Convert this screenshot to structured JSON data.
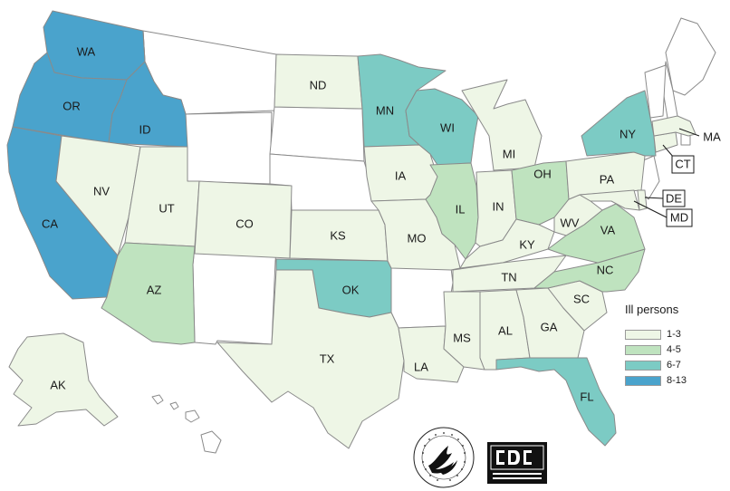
{
  "legend": {
    "title": "Ill persons",
    "bins": [
      {
        "label": "1-3",
        "color": "#eef6e6"
      },
      {
        "label": "4-5",
        "color": "#bfe3bf"
      },
      {
        "label": "6-7",
        "color": "#7ccbc4"
      },
      {
        "label": "8-13",
        "color": "#4aa3cc"
      }
    ]
  },
  "states": [
    {
      "abbr": "WA",
      "bin": 3
    },
    {
      "abbr": "OR",
      "bin": 3
    },
    {
      "abbr": "ID",
      "bin": 3
    },
    {
      "abbr": "CA",
      "bin": 3
    },
    {
      "abbr": "NV",
      "bin": 0
    },
    {
      "abbr": "UT",
      "bin": 0
    },
    {
      "abbr": "AZ",
      "bin": 1
    },
    {
      "abbr": "CO",
      "bin": 0
    },
    {
      "abbr": "ND",
      "bin": 0
    },
    {
      "abbr": "KS",
      "bin": 0
    },
    {
      "abbr": "OK",
      "bin": 2
    },
    {
      "abbr": "TX",
      "bin": 0
    },
    {
      "abbr": "MN",
      "bin": 2
    },
    {
      "abbr": "IA",
      "bin": 0
    },
    {
      "abbr": "MO",
      "bin": 0
    },
    {
      "abbr": "LA",
      "bin": 0
    },
    {
      "abbr": "WI",
      "bin": 2
    },
    {
      "abbr": "IL",
      "bin": 1
    },
    {
      "abbr": "MI",
      "bin": 0
    },
    {
      "abbr": "IN",
      "bin": 0
    },
    {
      "abbr": "OH",
      "bin": 1
    },
    {
      "abbr": "KY",
      "bin": 0
    },
    {
      "abbr": "TN",
      "bin": 0
    },
    {
      "abbr": "MS",
      "bin": 0
    },
    {
      "abbr": "AL",
      "bin": 0
    },
    {
      "abbr": "GA",
      "bin": 0
    },
    {
      "abbr": "FL",
      "bin": 2
    },
    {
      "abbr": "SC",
      "bin": 0
    },
    {
      "abbr": "NC",
      "bin": 1
    },
    {
      "abbr": "VA",
      "bin": 1
    },
    {
      "abbr": "WV",
      "bin": 0
    },
    {
      "abbr": "PA",
      "bin": 0
    },
    {
      "abbr": "NY",
      "bin": 2
    },
    {
      "abbr": "MD",
      "bin": 0
    },
    {
      "abbr": "DE",
      "bin": 0
    },
    {
      "abbr": "CT",
      "bin": 0
    },
    {
      "abbr": "MA",
      "bin": 0
    },
    {
      "abbr": "AK",
      "bin": 0
    }
  ],
  "logos": {
    "hhs": "hhs-eagle-seal-icon",
    "cdc": "cdc-logo-icon"
  }
}
